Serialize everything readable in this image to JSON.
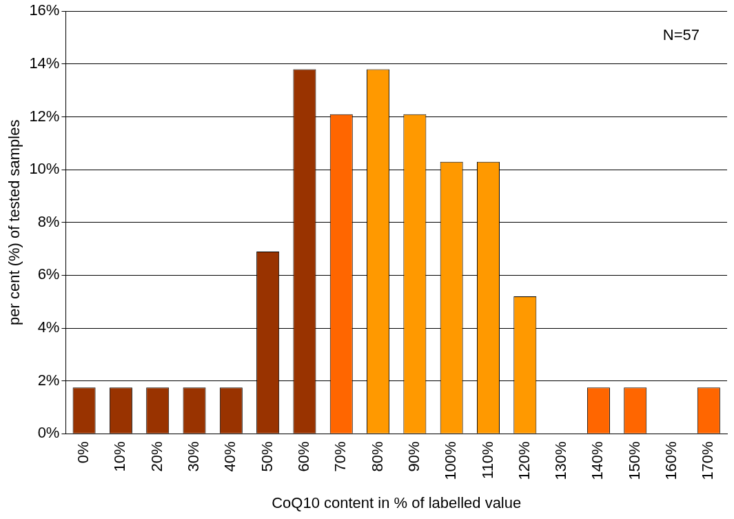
{
  "chart_data": {
    "type": "bar",
    "xlabel": "CoQ10 content in % of labelled value",
    "ylabel": "per cent (%) of tested samples",
    "categories": [
      "0%",
      "10%",
      "20%",
      "30%",
      "40%",
      "50%",
      "60%",
      "70%",
      "80%",
      "90%",
      "100%",
      "110%",
      "120%",
      "130%",
      "140%",
      "150%",
      "160%",
      "170%"
    ],
    "values": [
      1.75,
      1.75,
      1.75,
      1.75,
      1.75,
      6.9,
      13.8,
      12.1,
      13.8,
      12.1,
      10.3,
      10.3,
      5.2,
      0,
      1.75,
      1.75,
      0,
      1.75
    ],
    "colors": [
      "#993300",
      "#993300",
      "#993300",
      "#993300",
      "#993300",
      "#993300",
      "#993300",
      "#ff6600",
      "#ff9900",
      "#ff9900",
      "#ff9900",
      "#ff9900",
      "#ff9900",
      "#ff6600",
      "#ff6600",
      "#ff6600",
      "#ff6600",
      "#ff6600"
    ],
    "ylim": [
      0,
      16
    ],
    "yticks": [
      {
        "value": 0,
        "label": "0%"
      },
      {
        "value": 2,
        "label": "2%"
      },
      {
        "value": 4,
        "label": "4%"
      },
      {
        "value": 6,
        "label": "6%"
      },
      {
        "value": 8,
        "label": "8%"
      },
      {
        "value": 10,
        "label": "10%"
      },
      {
        "value": 12,
        "label": "12%"
      },
      {
        "value": 14,
        "label": "14%"
      },
      {
        "value": 16,
        "label": "16%"
      }
    ],
    "grid": "y",
    "legend": false,
    "annotations": [
      "N=57"
    ]
  }
}
